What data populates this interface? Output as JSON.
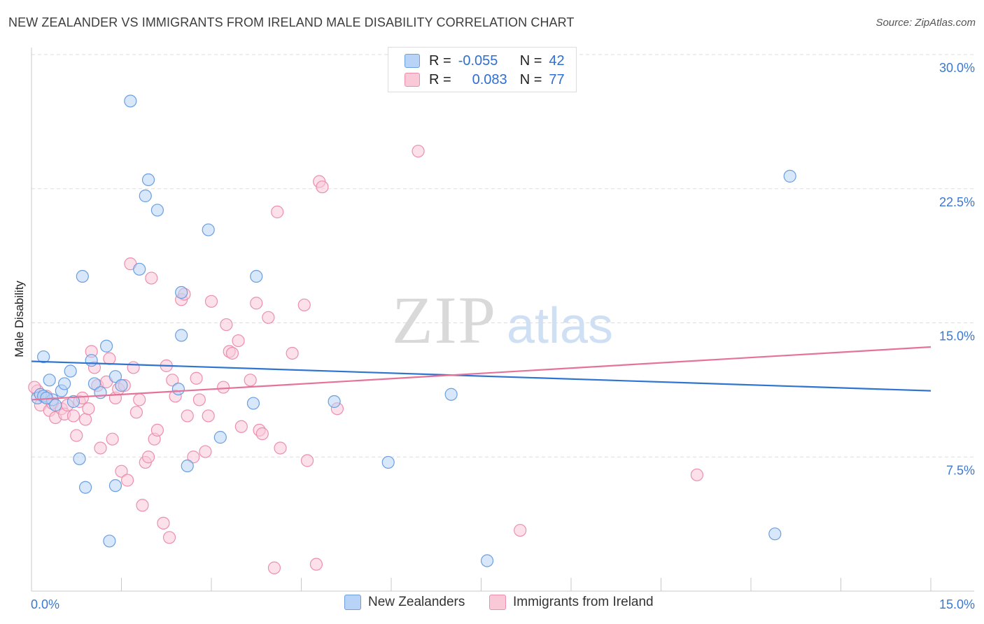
{
  "title": "NEW ZEALANDER VS IMMIGRANTS FROM IRELAND MALE DISABILITY CORRELATION CHART",
  "source": "Source: ZipAtlas.com",
  "watermark": {
    "zip": "ZIP",
    "atlas": "atlas"
  },
  "legend_stats": [
    {
      "r_label": "R =",
      "r_value": "-0.055",
      "n_label": "N =",
      "n_value": "42"
    },
    {
      "r_label": "R =",
      "r_value": "0.083",
      "n_label": "N =",
      "n_value": "77"
    }
  ],
  "colors": {
    "blue_fill": "#b8d3f5",
    "blue_stroke": "#6a9fe0",
    "blue_line": "#2f74d0",
    "pink_fill": "#f9c9d8",
    "pink_stroke": "#ec8fad",
    "pink_line": "#e57399",
    "grid": "#dddddd",
    "axis_label": "#3b78d0"
  },
  "chart_data": {
    "type": "scatter",
    "title": "NEW ZEALANDER VS IMMIGRANTS FROM IRELAND MALE DISABILITY CORRELATION CHART",
    "xlabel": "",
    "ylabel": "Male Disability",
    "xlim": [
      0,
      15
    ],
    "ylim": [
      0,
      30
    ],
    "x_tick_labels": [
      "0.0%",
      "15.0%"
    ],
    "y_ticks": [
      7.5,
      15,
      22.5,
      30
    ],
    "y_tick_labels": [
      "7.5%",
      "15.0%",
      "22.5%",
      "30.0%"
    ],
    "series": [
      {
        "name": "New Zealanders",
        "r": -0.055,
        "n": 42,
        "trend": {
          "x": [
            0,
            15
          ],
          "y": [
            12.85,
            11.2
          ]
        },
        "points": [
          [
            0.1,
            10.8
          ],
          [
            0.15,
            11.0
          ],
          [
            0.2,
            10.9
          ],
          [
            0.2,
            13.1
          ],
          [
            0.3,
            11.8
          ],
          [
            0.35,
            10.7
          ],
          [
            0.4,
            10.4
          ],
          [
            0.5,
            11.2
          ],
          [
            0.55,
            11.6
          ],
          [
            0.65,
            12.3
          ],
          [
            0.7,
            10.6
          ],
          [
            0.8,
            7.4
          ],
          [
            0.85,
            17.6
          ],
          [
            0.9,
            5.8
          ],
          [
            1.0,
            12.9
          ],
          [
            1.05,
            11.6
          ],
          [
            1.15,
            11.1
          ],
          [
            1.25,
            13.7
          ],
          [
            1.3,
            2.8
          ],
          [
            1.4,
            12.0
          ],
          [
            1.4,
            5.9
          ],
          [
            1.65,
            27.4
          ],
          [
            1.8,
            18.0
          ],
          [
            1.9,
            22.1
          ],
          [
            1.95,
            23.0
          ],
          [
            2.1,
            21.3
          ],
          [
            2.45,
            11.3
          ],
          [
            2.5,
            14.3
          ],
          [
            2.5,
            16.7
          ],
          [
            2.6,
            7.0
          ],
          [
            2.95,
            20.2
          ],
          [
            3.15,
            8.6
          ],
          [
            3.7,
            10.5
          ],
          [
            3.75,
            17.6
          ],
          [
            5.05,
            10.6
          ],
          [
            5.95,
            7.2
          ],
          [
            7.0,
            11.0
          ],
          [
            7.6,
            1.7
          ],
          [
            12.4,
            3.2
          ],
          [
            12.65,
            23.2
          ],
          [
            0.25,
            10.8
          ],
          [
            1.5,
            11.5
          ]
        ]
      },
      {
        "name": "Immigrants from Ireland",
        "r": 0.083,
        "n": 77,
        "trend": {
          "x": [
            0,
            15
          ],
          "y": [
            10.7,
            13.65
          ]
        },
        "points": [
          [
            0.1,
            11.2
          ],
          [
            0.15,
            10.4
          ],
          [
            0.25,
            10.9
          ],
          [
            0.3,
            10.1
          ],
          [
            0.35,
            10.5
          ],
          [
            0.4,
            9.7
          ],
          [
            0.5,
            10.2
          ],
          [
            0.55,
            9.9
          ],
          [
            0.6,
            10.4
          ],
          [
            0.7,
            9.8
          ],
          [
            0.75,
            8.7
          ],
          [
            0.8,
            10.6
          ],
          [
            0.85,
            10.8
          ],
          [
            0.9,
            9.6
          ],
          [
            0.95,
            10.2
          ],
          [
            1.0,
            13.4
          ],
          [
            1.05,
            12.5
          ],
          [
            1.1,
            11.5
          ],
          [
            1.15,
            8.0
          ],
          [
            1.25,
            11.7
          ],
          [
            1.3,
            13.0
          ],
          [
            1.35,
            8.5
          ],
          [
            1.4,
            10.8
          ],
          [
            1.45,
            11.3
          ],
          [
            1.5,
            6.7
          ],
          [
            1.55,
            11.5
          ],
          [
            1.6,
            6.2
          ],
          [
            1.65,
            18.3
          ],
          [
            1.7,
            12.5
          ],
          [
            1.75,
            10.0
          ],
          [
            1.8,
            10.7
          ],
          [
            1.85,
            4.8
          ],
          [
            1.9,
            7.2
          ],
          [
            1.95,
            7.5
          ],
          [
            2.0,
            17.5
          ],
          [
            2.05,
            8.5
          ],
          [
            2.1,
            9.0
          ],
          [
            2.2,
            3.8
          ],
          [
            2.25,
            12.6
          ],
          [
            2.3,
            3.0
          ],
          [
            2.35,
            11.8
          ],
          [
            2.4,
            10.9
          ],
          [
            2.5,
            16.3
          ],
          [
            2.55,
            16.6
          ],
          [
            2.6,
            9.8
          ],
          [
            2.7,
            7.5
          ],
          [
            2.75,
            11.9
          ],
          [
            2.8,
            10.7
          ],
          [
            2.9,
            7.8
          ],
          [
            2.95,
            9.8
          ],
          [
            3.0,
            16.2
          ],
          [
            3.2,
            11.4
          ],
          [
            3.25,
            14.9
          ],
          [
            3.3,
            13.4
          ],
          [
            3.35,
            13.3
          ],
          [
            3.45,
            14.0
          ],
          [
            3.5,
            9.2
          ],
          [
            3.65,
            11.8
          ],
          [
            3.75,
            16.1
          ],
          [
            3.8,
            9.0
          ],
          [
            3.85,
            8.8
          ],
          [
            3.95,
            15.3
          ],
          [
            4.1,
            21.2
          ],
          [
            4.15,
            8.0
          ],
          [
            4.35,
            13.3
          ],
          [
            4.55,
            16.0
          ],
          [
            4.6,
            7.3
          ],
          [
            4.75,
            1.5
          ],
          [
            4.8,
            22.9
          ],
          [
            4.85,
            22.6
          ],
          [
            5.1,
            10.2
          ],
          [
            6.45,
            24.6
          ],
          [
            8.15,
            3.4
          ],
          [
            11.1,
            6.5
          ],
          [
            4.05,
            1.3
          ],
          [
            0.05,
            11.4
          ],
          [
            0.2,
            10.9
          ]
        ]
      }
    ]
  },
  "legend_bottom": [
    "New Zealanders",
    "Immigrants from Ireland"
  ]
}
